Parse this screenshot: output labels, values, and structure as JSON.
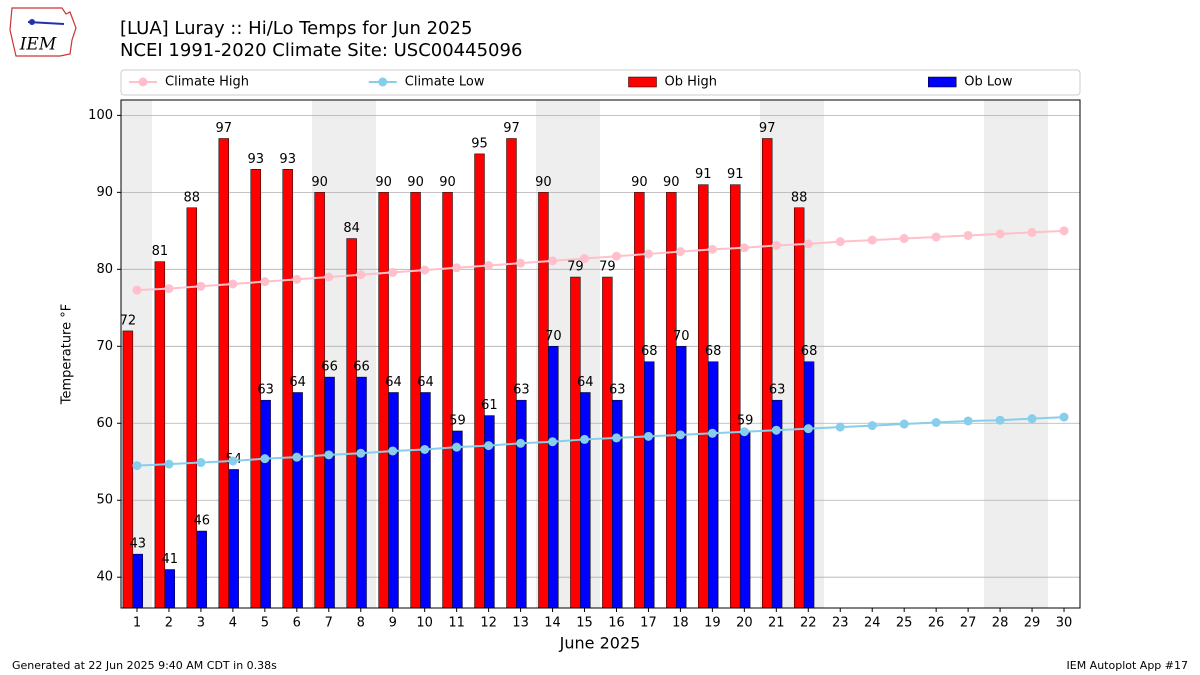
{
  "chart_data": {
    "type": "bar",
    "title": "[LUA] Luray :: Hi/Lo Temps for Jun 2025",
    "subtitle": "NCEI 1991-2020 Climate Site: USC00445096",
    "x_label": "June 2025",
    "y_label": "Temperature °F",
    "logo_text": "IEM",
    "footer_left": "Generated at 22 Jun 2025 9:40 AM CDT in 0.38s",
    "footer_right": "IEM Autoplot App #17",
    "x": [
      1,
      2,
      3,
      4,
      5,
      6,
      7,
      8,
      9,
      10,
      11,
      12,
      13,
      14,
      15,
      16,
      17,
      18,
      19,
      20,
      21,
      22,
      23,
      24,
      25,
      26,
      27,
      28,
      29,
      30
    ],
    "xlim": [
      0.5,
      30.5
    ],
    "xticks": [
      1,
      2,
      3,
      4,
      5,
      6,
      7,
      8,
      9,
      10,
      11,
      12,
      13,
      14,
      15,
      16,
      17,
      18,
      19,
      20,
      21,
      22,
      23,
      24,
      25,
      26,
      27,
      28,
      29,
      30
    ],
    "ylim": [
      36,
      102
    ],
    "yticks": [
      40,
      50,
      60,
      70,
      80,
      90,
      100
    ],
    "grid": true,
    "legend": "top",
    "series": [
      {
        "name": "Climate High",
        "type": "line",
        "color": "#ffc0cb",
        "values": [
          77.3,
          77.5,
          77.8,
          78.1,
          78.4,
          78.7,
          79.0,
          79.3,
          79.6,
          79.9,
          80.2,
          80.5,
          80.8,
          81.1,
          81.4,
          81.7,
          82.0,
          82.3,
          82.6,
          82.8,
          83.1,
          83.3,
          83.6,
          83.8,
          84.0,
          84.2,
          84.4,
          84.6,
          84.8,
          85.0
        ]
      },
      {
        "name": "Climate Low",
        "type": "line",
        "color": "#87ceeb",
        "values": [
          54.5,
          54.7,
          54.9,
          55.1,
          55.4,
          55.6,
          55.9,
          56.1,
          56.4,
          56.6,
          56.9,
          57.1,
          57.4,
          57.6,
          57.9,
          58.1,
          58.3,
          58.5,
          58.7,
          58.9,
          59.1,
          59.3,
          59.5,
          59.7,
          59.9,
          60.1,
          60.3,
          60.4,
          60.6,
          60.8
        ]
      },
      {
        "name": "Ob High",
        "type": "bar",
        "color": "#ff0000",
        "values": [
          72,
          81,
          88,
          97,
          93,
          93,
          90,
          84,
          90,
          90,
          90,
          95,
          97,
          90,
          79,
          79,
          90,
          90,
          91,
          91,
          97,
          88,
          null,
          null,
          null,
          null,
          null,
          null,
          null,
          null
        ]
      },
      {
        "name": "Ob Low",
        "type": "bar",
        "color": "#0000ff",
        "values": [
          43,
          41,
          46,
          54,
          63,
          64,
          66,
          66,
          64,
          64,
          59,
          61,
          63,
          70,
          64,
          63,
          68,
          70,
          68,
          59,
          63,
          68,
          null,
          null,
          null,
          null,
          null,
          null,
          null,
          null
        ]
      }
    ]
  }
}
